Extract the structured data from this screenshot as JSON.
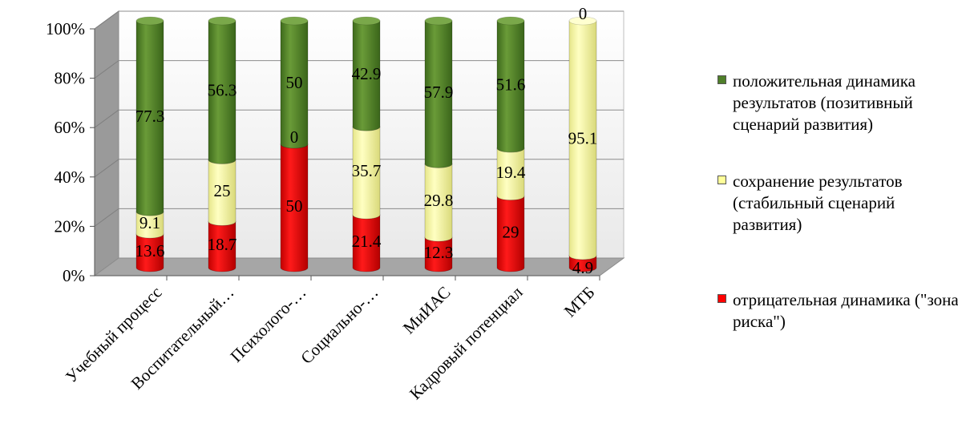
{
  "chart_data": {
    "type": "bar",
    "stacked": true,
    "percent_stacked": true,
    "three_d": true,
    "categories": [
      "Учебный процесс",
      "Воспитательный…",
      "Психолого-…",
      "Социально-…",
      "МиИАС",
      "Кадровый потенциал",
      "МТБ"
    ],
    "series": [
      {
        "name": "отрицательная динамика (\"зона риска\")",
        "color": "#ff0000",
        "values": [
          13.6,
          18.7,
          50,
          21.4,
          12.3,
          29,
          4.9
        ]
      },
      {
        "name": "сохранение результатов (стабильный сценарий развития)",
        "color": "#ffff99",
        "values": [
          9.1,
          25,
          0,
          35.7,
          29.8,
          19.4,
          95.1
        ]
      },
      {
        "name": "положительная динамика результатов (позитивный сценарий развития)",
        "color": "#4f7f2a",
        "values": [
          77.3,
          56.3,
          50,
          42.9,
          57.9,
          51.6,
          0
        ]
      }
    ],
    "y_ticks": [
      "0%",
      "20%",
      "40%",
      "60%",
      "80%",
      "100%"
    ],
    "ylim": [
      0,
      100
    ],
    "grid": true,
    "legend_position": "right"
  }
}
